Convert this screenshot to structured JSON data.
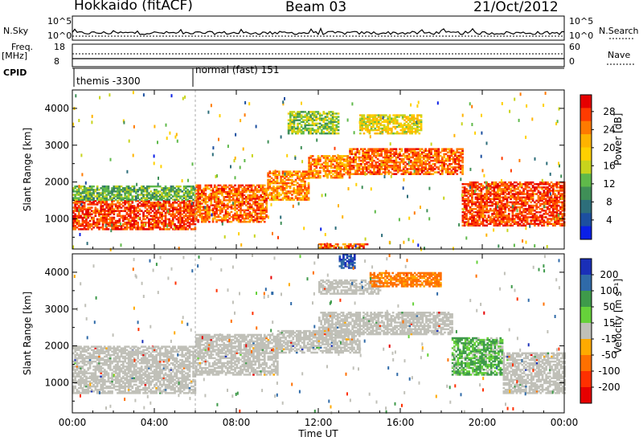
{
  "header": {
    "station": "Hokkaido (fitACF)",
    "beam": "Beam 03",
    "date": "21/Oct/2012"
  },
  "top_panels": {
    "nsky_label": "N.Sky",
    "nsearch_label": "N.Search",
    "noise_ticks_left": [
      "10^5",
      "10^0"
    ],
    "noise_ticks_right": [
      "10^5",
      "10^0"
    ],
    "freq_label": "Freq.",
    "freq_unit": "[MHz]",
    "freq_ticks": [
      "18",
      "8"
    ],
    "nave_label": "Nave",
    "nave_ticks": [
      "60",
      "0"
    ],
    "cpid_label": "CPID",
    "cpid_segments": [
      "themis -3300",
      "normal (fast) 151"
    ]
  },
  "chart_data": [
    {
      "type": "heatmap",
      "panel": "power",
      "ylabel": "Slant Range [km]",
      "xlabel": "",
      "x_ticks": [
        "00:00",
        "04:00",
        "08:00",
        "12:00",
        "16:00",
        "20:00",
        "00:00"
      ],
      "y_ticks": [
        "1000",
        "2000",
        "3000",
        "4000"
      ],
      "xlim": [
        0,
        24
      ],
      "ylim": [
        180,
        4500
      ],
      "colorbar": {
        "label": "Power [dB]",
        "ticks": [
          "28",
          "24",
          "20",
          "16",
          "12",
          "8",
          "4"
        ],
        "colors": [
          "#e60000",
          "#ff3b00",
          "#ff7a00",
          "#ffb300",
          "#ffd000",
          "#c8d41c",
          "#5fb94a",
          "#3f8f57",
          "#2d6e7a",
          "#1c4fa0",
          "#0a1fe6"
        ]
      },
      "regions": [
        {
          "t0": 0.0,
          "t1": 6.0,
          "r0": 700,
          "r1": 1500,
          "level": 28
        },
        {
          "t0": 0.0,
          "t1": 6.0,
          "r0": 1500,
          "r1": 1900,
          "level": 12
        },
        {
          "t0": 6.0,
          "t1": 9.5,
          "r0": 900,
          "r1": 1900,
          "level": 26
        },
        {
          "t0": 9.5,
          "t1": 11.5,
          "r0": 1500,
          "r1": 2300,
          "level": 24
        },
        {
          "t0": 11.5,
          "t1": 13.5,
          "r0": 2100,
          "r1": 2700,
          "level": 24
        },
        {
          "t0": 10.5,
          "t1": 13.0,
          "r0": 3300,
          "r1": 3900,
          "level": 14
        },
        {
          "t0": 13.5,
          "t1": 19.0,
          "r0": 2200,
          "r1": 2900,
          "level": 26
        },
        {
          "t0": 14.0,
          "t1": 17.0,
          "r0": 3300,
          "r1": 3800,
          "level": 18
        },
        {
          "t0": 19.0,
          "t1": 24.0,
          "r0": 800,
          "r1": 2000,
          "level": 28
        },
        {
          "t0": 12.0,
          "t1": 14.5,
          "r0": 200,
          "r1": 300,
          "level": 26
        }
      ]
    },
    {
      "type": "heatmap",
      "panel": "velocity",
      "ylabel": "Slant Range [km]",
      "xlabel": "Time UT",
      "x_ticks": [
        "00:00",
        "04:00",
        "08:00",
        "12:00",
        "16:00",
        "20:00",
        "00:00"
      ],
      "y_ticks": [
        "1000",
        "2000",
        "3000",
        "4000"
      ],
      "xlim": [
        0,
        24
      ],
      "ylim": [
        180,
        4500
      ],
      "colorbar": {
        "label": "Velocity [m s⁻¹]",
        "ticks": [
          "200",
          "100",
          "50",
          "15",
          "-15",
          "-50",
          "-100",
          "-200"
        ],
        "colors": [
          "#1a2fb8",
          "#2f6aa8",
          "#3e9a4a",
          "#66d13a",
          "#c0c0b8",
          "#ffaa00",
          "#ff7000",
          "#ff3000",
          "#e60000"
        ]
      },
      "regions": [
        {
          "t0": 0.0,
          "t1": 6.0,
          "r0": 700,
          "r1": 2000,
          "level": 0
        },
        {
          "t0": 6.0,
          "t1": 10.0,
          "r0": 1200,
          "r1": 2300,
          "level": 0
        },
        {
          "t0": 10.0,
          "t1": 14.0,
          "r0": 1800,
          "r1": 2400,
          "level": 0
        },
        {
          "t0": 12.0,
          "t1": 18.5,
          "r0": 2300,
          "r1": 2900,
          "level": 0
        },
        {
          "t0": 12.0,
          "t1": 15.0,
          "r0": 3400,
          "r1": 3800,
          "level": 0
        },
        {
          "t0": 14.5,
          "t1": 18.0,
          "r0": 3600,
          "r1": 4000,
          "level": -60
        },
        {
          "t0": 18.5,
          "t1": 21.0,
          "r0": 1200,
          "r1": 2200,
          "level": 30
        },
        {
          "t0": 21.0,
          "t1": 24.0,
          "r0": 700,
          "r1": 1800,
          "level": 0
        },
        {
          "t0": 13.0,
          "t1": 13.8,
          "r0": 4100,
          "r1": 4500,
          "level": 150
        }
      ]
    }
  ]
}
